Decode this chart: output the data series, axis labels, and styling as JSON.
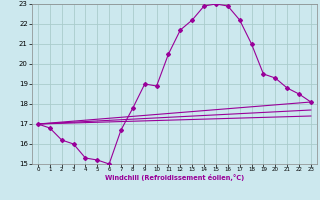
{
  "xlabel": "Windchill (Refroidissement éolien,°C)",
  "background_color": "#cce8ee",
  "grid_color": "#aacccc",
  "line_color": "#990099",
  "xlim": [
    -0.5,
    23.5
  ],
  "ylim": [
    15,
    23
  ],
  "xticks": [
    0,
    1,
    2,
    3,
    4,
    5,
    6,
    7,
    8,
    9,
    10,
    11,
    12,
    13,
    14,
    15,
    16,
    17,
    18,
    19,
    20,
    21,
    22,
    23
  ],
  "yticks": [
    15,
    16,
    17,
    18,
    19,
    20,
    21,
    22,
    23
  ],
  "line1_x": [
    0,
    1,
    2,
    3,
    4,
    5,
    6,
    7,
    8,
    9,
    10,
    11,
    12,
    13,
    14,
    15,
    16,
    17,
    18,
    19,
    20,
    21,
    22,
    23
  ],
  "line1_y": [
    17.0,
    16.8,
    16.2,
    16.0,
    15.3,
    15.2,
    15.0,
    16.7,
    17.8,
    19.0,
    18.9,
    20.5,
    21.7,
    22.2,
    22.9,
    23.0,
    22.9,
    22.2,
    21.0,
    19.5,
    19.3,
    18.8,
    18.5,
    18.1
  ],
  "line2_x": [
    0,
    23
  ],
  "line2_y": [
    17.0,
    18.1
  ],
  "line3_x": [
    0,
    23
  ],
  "line3_y": [
    17.0,
    17.7
  ],
  "line4_x": [
    0,
    23
  ],
  "line4_y": [
    17.0,
    17.4
  ]
}
